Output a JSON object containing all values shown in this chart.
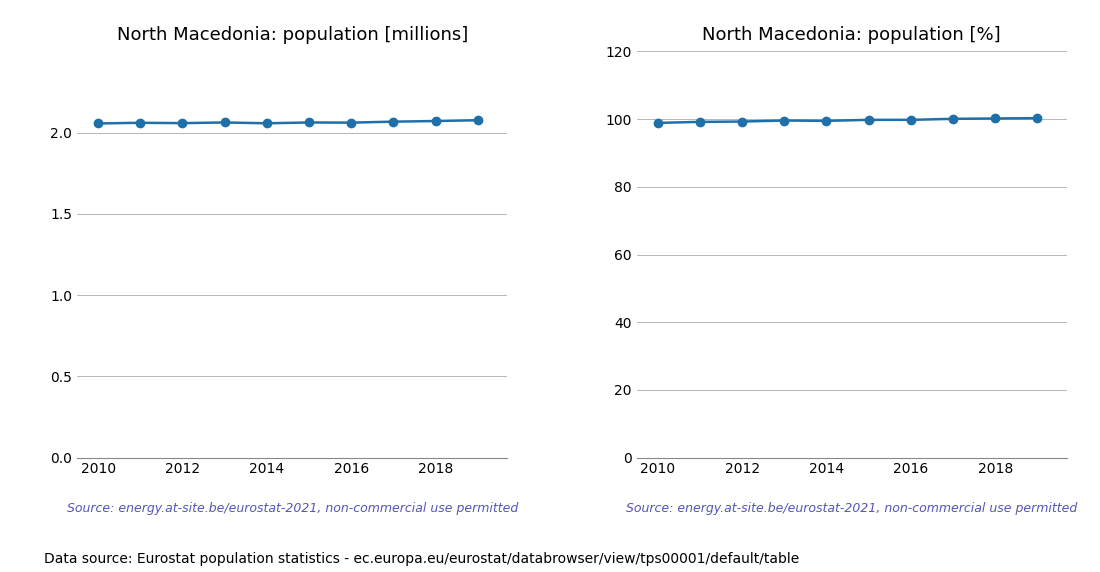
{
  "years": [
    2010,
    2011,
    2012,
    2013,
    2014,
    2015,
    2016,
    2017,
    2018,
    2019
  ],
  "population_millions": [
    2.057,
    2.061,
    2.059,
    2.063,
    2.058,
    2.063,
    2.062,
    2.068,
    2.072,
    2.077
  ],
  "population_pct": [
    98.9,
    99.2,
    99.3,
    99.6,
    99.5,
    99.8,
    99.8,
    100.1,
    100.2,
    100.3
  ],
  "title_left": "North Macedonia: population [millions]",
  "title_right": "North Macedonia: population [%]",
  "source_text": "Source: energy.at-site.be/eurostat-2021, non-commercial use permitted",
  "footer_text": "Data source: Eurostat population statistics - ec.europa.eu/eurostat/databrowser/view/tps00001/default/table",
  "line_color": "#1f6fa8",
  "source_color": "#5555bb",
  "ylim_left": [
    0.0,
    2.5
  ],
  "ylim_right": [
    0,
    120
  ],
  "yticks_left": [
    0.0,
    0.5,
    1.0,
    1.5,
    2.0
  ],
  "yticks_right": [
    0,
    20,
    40,
    60,
    80,
    100,
    120
  ],
  "xticks": [
    2010,
    2012,
    2014,
    2016,
    2018
  ],
  "xlim": [
    2009.5,
    2019.7
  ],
  "marker": "o",
  "markersize": 6,
  "linewidth": 1.8,
  "source_fontsize": 9,
  "footer_fontsize": 10,
  "title_fontsize": 13,
  "grid_color": "#aaaaaa",
  "grid_linewidth": 0.6
}
